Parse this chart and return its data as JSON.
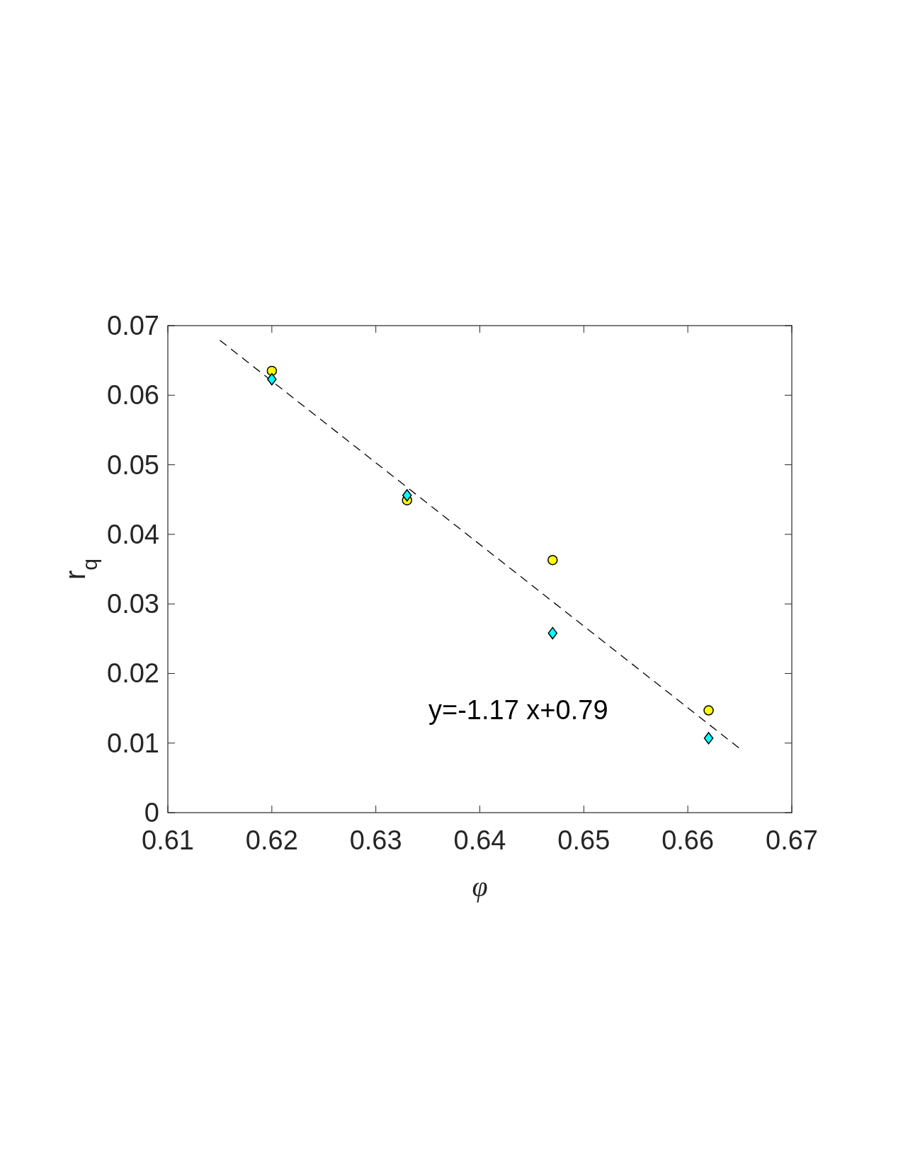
{
  "chart_data": {
    "type": "scatter",
    "xlabel": "φ",
    "ylabel": "r$_{q}$",
    "xlim": [
      0.61,
      0.67
    ],
    "xticks": [
      0.61,
      0.62,
      0.63,
      0.64,
      0.65,
      0.66,
      0.67
    ],
    "ylim": [
      0,
      0.07
    ],
    "yticks": [
      0,
      0.01,
      0.02,
      0.03,
      0.04,
      0.05,
      0.06,
      0.07
    ],
    "x": [
      0.62,
      0.633,
      0.647,
      0.662
    ],
    "series": [
      {
        "marker": "circle",
        "color": "#ffff00",
        "values": [
          0.0635,
          0.0449,
          0.0363,
          0.0147
        ]
      },
      {
        "marker": "diamond",
        "color": "#00ffff",
        "values": [
          0.0623,
          0.0456,
          0.0258,
          0.0107
        ]
      },
      {
        "type": "line",
        "x": [
          0.615,
          0.665
        ],
        "values": [
          0.0679,
          0.0092
        ],
        "color": "#000000",
        "line_style": "dashed",
        "marker": "none"
      }
    ],
    "annotations": [
      "y=-1.17 x+0.79"
    ],
    "grid": false
  }
}
